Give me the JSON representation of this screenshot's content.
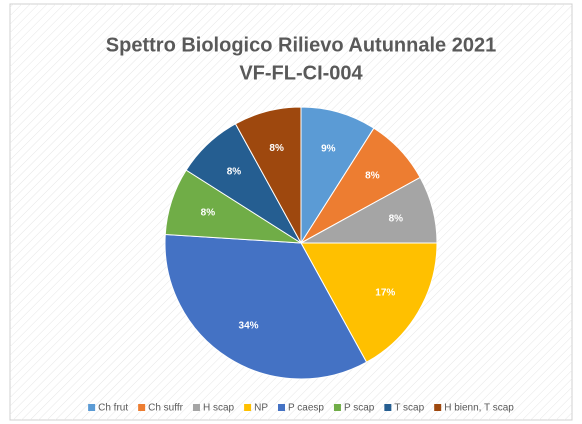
{
  "chart_data": {
    "type": "pie",
    "title": "Spettro Biologico Rilievo Autunnale 2021",
    "subtitle": "VF-FL-CI-004",
    "categories": [
      "Ch frut",
      "Ch suffr",
      "H scap",
      "NP",
      "P caesp",
      "P scap",
      "T scap",
      "H bienn, T scap"
    ],
    "values": [
      9,
      8,
      8,
      17,
      34,
      8,
      8,
      8
    ],
    "value_labels": [
      "9%",
      "8%",
      "8%",
      "17%",
      "34%",
      "8%",
      "8%",
      "8%"
    ],
    "colors": [
      "#5b9bd5",
      "#ed7d31",
      "#a5a5a5",
      "#ffc000",
      "#4472c4",
      "#70ad47",
      "#255e91",
      "#9e480e"
    ],
    "legend": "bottom"
  }
}
